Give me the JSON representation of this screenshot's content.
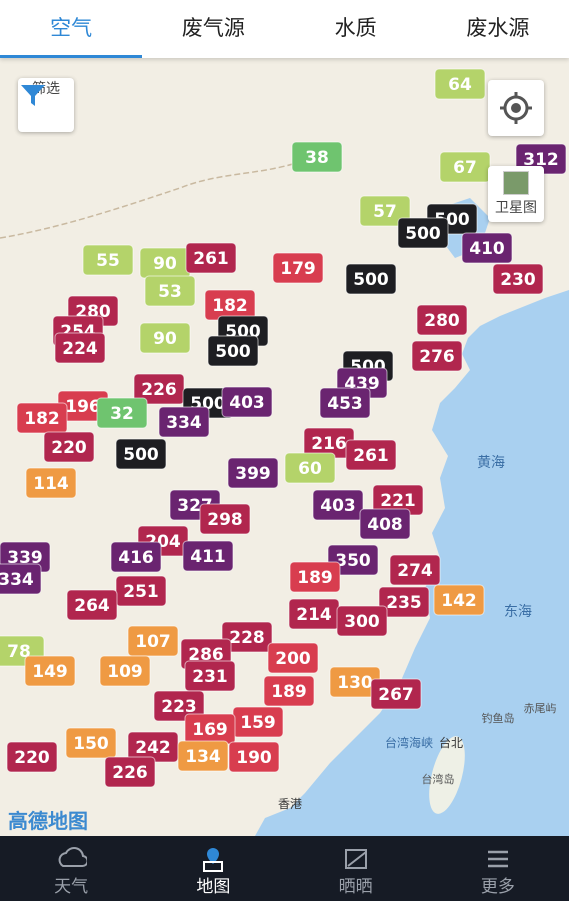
{
  "tabs": [
    "空气",
    "废气源",
    "水质",
    "废水源"
  ],
  "filter_label": "筛选",
  "satellite_label": "卫星图",
  "map": {
    "markers": [
      38,
      64,
      67,
      312,
      57,
      500,
      500,
      410,
      230,
      55,
      90,
      261,
      179,
      500,
      53,
      182,
      280,
      254,
      224,
      90,
      500,
      500,
      280,
      276,
      500,
      439,
      226,
      196,
      182,
      32,
      500,
      403,
      453,
      334,
      220,
      500,
      216,
      261,
      399,
      60,
      114,
      327,
      403,
      221,
      298,
      408,
      204,
      339,
      416,
      411,
      350,
      274,
      334,
      251,
      189,
      264,
      235,
      142,
      214,
      300,
      228,
      78,
      107,
      286,
      200,
      149,
      109,
      231,
      130,
      267,
      189,
      223,
      159,
      169,
      242,
      150,
      220,
      134,
      190,
      226
    ],
    "labels": [
      "黄海",
      "东海",
      "台湾海峡",
      "台北",
      "钓鱼岛",
      "赤尾屿",
      "台湾岛",
      "香港"
    ],
    "logo": "高德地图"
  },
  "nav": [
    "天气",
    "地图",
    "晒晒",
    "更多"
  ]
}
